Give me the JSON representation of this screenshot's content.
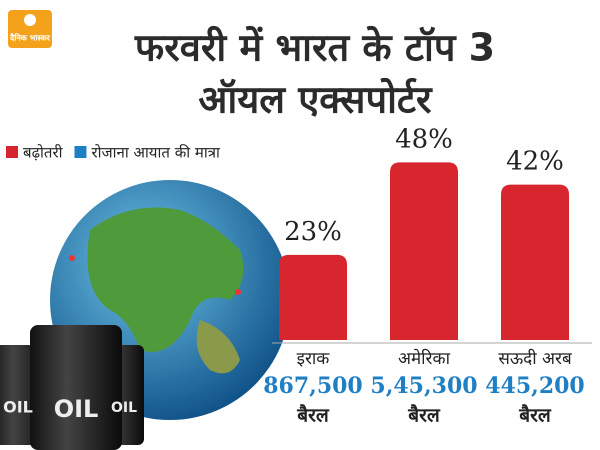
{
  "brand": "दैनिक भास्कर",
  "barrel_labels": [
    "OIL",
    "OIL",
    "OIL"
  ],
  "chart_data": {
    "type": "bar",
    "title": [
      "फरवरी में भारत के टॉप 3",
      "ऑयल एक्सपोर्टर"
    ],
    "categories": [
      "इराक",
      "अमेरिका",
      "सऊदी अरब"
    ],
    "series": [
      {
        "name": "बढ़ोतरी",
        "color": "#d7262e",
        "values": [
          23,
          48,
          42
        ],
        "value_labels": [
          "23%",
          "48%",
          "42%"
        ]
      },
      {
        "name": "रोजाना आयात की मात्रा",
        "color": "#1f7fc5",
        "values": [
          867500,
          545300,
          445200
        ],
        "value_labels": [
          "867,500",
          "5,45,300",
          "445,200"
        ],
        "unit_labels": [
          "बैरल",
          "बैरल",
          "बैरल"
        ]
      }
    ]
  }
}
